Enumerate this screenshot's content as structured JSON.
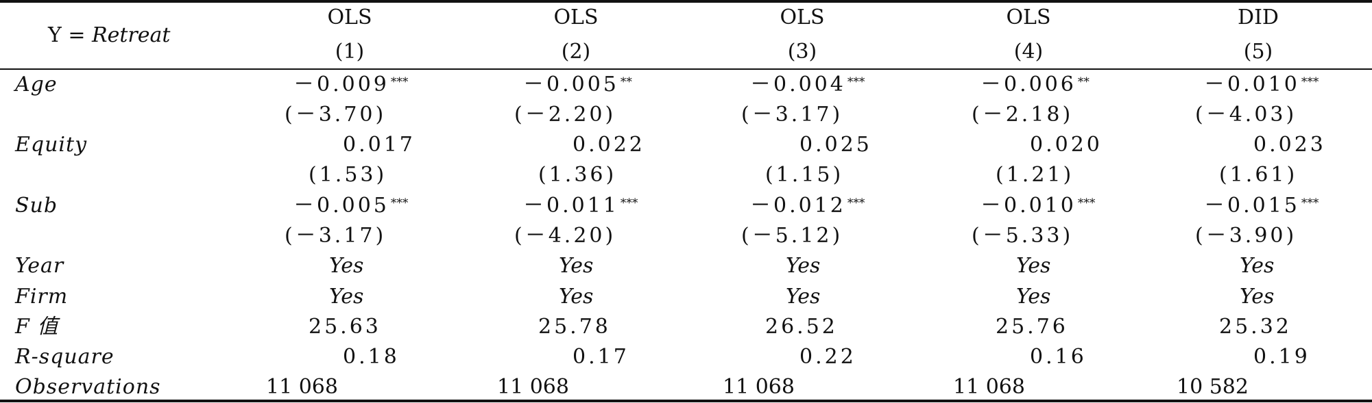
{
  "header": {
    "y_label_prefix": "Y = ",
    "y_label_var": "Retreat",
    "columns": [
      {
        "method": "OLS",
        "index": "(1)"
      },
      {
        "method": "OLS",
        "index": "(2)"
      },
      {
        "method": "OLS",
        "index": "(3)"
      },
      {
        "method": "OLS",
        "index": "(4)"
      },
      {
        "method": "DID",
        "index": "(5)"
      }
    ]
  },
  "rows": {
    "age": {
      "label": "Age",
      "coef": [
        "－0.009",
        "－0.005",
        "－0.004",
        "－0.006",
        "－0.010"
      ],
      "stars": [
        "***",
        "**",
        "***",
        "**",
        "***"
      ],
      "t": [
        "(－3.70)",
        "(－2.20)",
        "(－3.17)",
        "(－2.18)",
        "(－4.03)"
      ]
    },
    "equity": {
      "label": "Equity",
      "coef": [
        "0.017",
        "0.022",
        "0.025",
        "0.020",
        "0.023"
      ],
      "t": [
        "(1.53)",
        "(1.36)",
        "(1.15)",
        "(1.21)",
        "(1.61)"
      ]
    },
    "sub": {
      "label": "Sub",
      "coef": [
        "－0.005",
        "－0.011",
        "－0.012",
        "－0.010",
        "－0.015"
      ],
      "stars": [
        "***",
        "***",
        "***",
        "***",
        "***"
      ],
      "t": [
        "(－3.17)",
        "(－4.20)",
        "(－5.12)",
        "(－5.33)",
        "(－3.90)"
      ]
    },
    "year": {
      "label": "Year",
      "values": [
        "Yes",
        "Yes",
        "Yes",
        "Yes",
        "Yes"
      ]
    },
    "firm": {
      "label": "Firm",
      "values": [
        "Yes",
        "Yes",
        "Yes",
        "Yes",
        "Yes"
      ]
    },
    "f": {
      "label": "F 值",
      "values": [
        "25.63",
        "25.78",
        "26.52",
        "25.76",
        "25.32"
      ]
    },
    "r2": {
      "label": "R-square",
      "values": [
        "0.18",
        "0.17",
        "0.22",
        "0.16",
        "0.19"
      ]
    },
    "obs": {
      "label": "Observations",
      "values": [
        "11 068",
        "11 068",
        "11 068",
        "11 068",
        "10 582"
      ]
    }
  }
}
